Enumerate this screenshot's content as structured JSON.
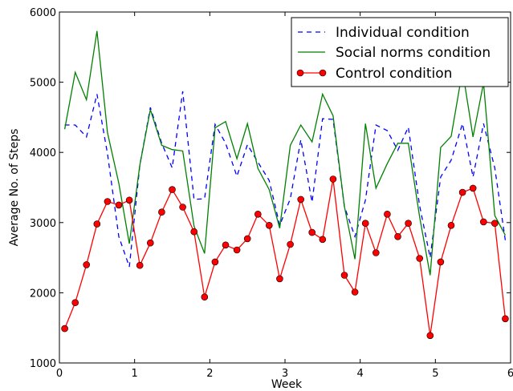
{
  "chart_data": {
    "type": "line",
    "xlabel": "Week",
    "ylabel": "Average No. of Steps",
    "xlim": [
      0,
      6
    ],
    "ylim": [
      1000,
      6000
    ],
    "xticks": [
      0,
      1,
      2,
      3,
      4,
      5,
      6
    ],
    "yticks": [
      1000,
      2000,
      3000,
      4000,
      5000,
      6000
    ],
    "grid": false,
    "legend_position": "top-right",
    "x": [
      0.07,
      0.21,
      0.36,
      0.5,
      0.64,
      0.79,
      0.93,
      1.07,
      1.21,
      1.36,
      1.5,
      1.64,
      1.79,
      1.93,
      2.07,
      2.21,
      2.36,
      2.5,
      2.64,
      2.79,
      2.93,
      3.07,
      3.21,
      3.36,
      3.5,
      3.64,
      3.79,
      3.93,
      4.07,
      4.21,
      4.36,
      4.5,
      4.64,
      4.79,
      4.93,
      5.07,
      5.21,
      5.36,
      5.5,
      5.64,
      5.79,
      5.93
    ],
    "series": [
      {
        "name": "Individual condition",
        "color": "#0000ff",
        "style": "dashed",
        "values": [
          4390,
          4390,
          4220,
          4830,
          3980,
          2800,
          2370,
          3820,
          4640,
          4130,
          3780,
          4870,
          3330,
          3340,
          4400,
          4130,
          3660,
          4110,
          3860,
          3600,
          2960,
          3340,
          4180,
          3290,
          4480,
          4470,
          3230,
          2800,
          3320,
          4390,
          4310,
          4030,
          4360,
          3240,
          2500,
          3650,
          3890,
          4410,
          3650,
          4410,
          3780,
          2750
        ]
      },
      {
        "name": "Social norms condition",
        "color": "#008000",
        "style": "solid",
        "values": [
          4330,
          5140,
          4750,
          5730,
          4280,
          3560,
          2700,
          3820,
          4610,
          4100,
          4040,
          4020,
          2950,
          2560,
          4350,
          4440,
          3910,
          4410,
          3770,
          3470,
          2920,
          4100,
          4390,
          4150,
          4830,
          4520,
          3230,
          2480,
          4410,
          3490,
          3840,
          4130,
          4130,
          3080,
          2250,
          4070,
          4230,
          5170,
          4220,
          4990,
          3100,
          2820
        ]
      },
      {
        "name": "Control condition",
        "color": "#ff0000",
        "style": "solid-marker",
        "values": [
          1490,
          1860,
          2400,
          2980,
          3300,
          3250,
          3320,
          2390,
          2710,
          3150,
          3470,
          3220,
          2870,
          1940,
          2440,
          2680,
          2610,
          2770,
          3120,
          2960,
          2200,
          2690,
          3330,
          2860,
          2760,
          3620,
          2250,
          2010,
          2990,
          2570,
          3120,
          2800,
          2990,
          2490,
          1390,
          2440,
          2960,
          3430,
          3490,
          3010,
          2990,
          1630
        ]
      }
    ]
  }
}
